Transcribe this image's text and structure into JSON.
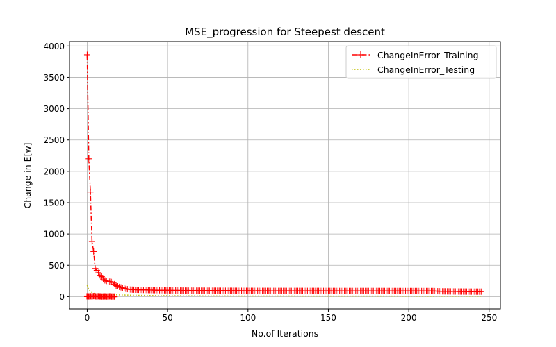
{
  "chart_data": {
    "type": "line",
    "title": "MSE_progression for Steepest descent",
    "xlabel": "No.of Iterations",
    "ylabel": "Change in E[w]",
    "xlim": [
      -11,
      257
    ],
    "ylim": [
      -195,
      4070
    ],
    "x_ticks": [
      0,
      50,
      100,
      150,
      200,
      250
    ],
    "y_ticks": [
      0,
      500,
      1000,
      1500,
      2000,
      2500,
      3000,
      3500,
      4000
    ],
    "grid": true,
    "legend_position": "top-right",
    "series": [
      {
        "name": "ChangeInError_Training",
        "color": "#ff0000",
        "linestyle": "dashdot",
        "marker": "+",
        "points": [
          [
            0,
            3860
          ],
          [
            1,
            2200
          ],
          [
            2,
            1670
          ],
          [
            3,
            880
          ],
          [
            4,
            720
          ],
          [
            5,
            450
          ],
          [
            6,
            420
          ],
          [
            7,
            380
          ],
          [
            8,
            340
          ],
          [
            9,
            320
          ],
          [
            10,
            280
          ],
          [
            11,
            260
          ],
          [
            12,
            250
          ],
          [
            13,
            245
          ],
          [
            14,
            240
          ],
          [
            15,
            235
          ],
          [
            16,
            225
          ],
          [
            17,
            200
          ],
          [
            18,
            175
          ],
          [
            19,
            165
          ],
          [
            20,
            155
          ],
          [
            22,
            140
          ],
          [
            24,
            125
          ],
          [
            26,
            115
          ],
          [
            28,
            112
          ],
          [
            30,
            110
          ],
          [
            33,
            108
          ],
          [
            36,
            106
          ],
          [
            40,
            104
          ],
          [
            45,
            102
          ],
          [
            50,
            100
          ],
          [
            55,
            99
          ],
          [
            60,
            97
          ],
          [
            70,
            96
          ],
          [
            80,
            95
          ],
          [
            90,
            94
          ],
          [
            100,
            93
          ],
          [
            120,
            92
          ],
          [
            140,
            92
          ],
          [
            160,
            91
          ],
          [
            180,
            91
          ],
          [
            200,
            90
          ],
          [
            215,
            90
          ],
          [
            220,
            85
          ],
          [
            230,
            82
          ],
          [
            240,
            80
          ],
          [
            245,
            80
          ]
        ],
        "overlay_points": [
          [
            0,
            5
          ],
          [
            1,
            4
          ],
          [
            2,
            6
          ],
          [
            3,
            4
          ],
          [
            4,
            8
          ],
          [
            5,
            5
          ],
          [
            6,
            3
          ],
          [
            7,
            6
          ],
          [
            8,
            4
          ],
          [
            9,
            2
          ],
          [
            10,
            3
          ],
          [
            11,
            4
          ],
          [
            12,
            2
          ],
          [
            13,
            3
          ],
          [
            14,
            5
          ],
          [
            15,
            2
          ],
          [
            16,
            3
          ],
          [
            17,
            2
          ]
        ]
      },
      {
        "name": "ChangeInError_Testing",
        "color": "#bfbf00",
        "linestyle": "dotted",
        "marker": "none",
        "points": [
          [
            0,
            180
          ],
          [
            1,
            110
          ],
          [
            2,
            80
          ],
          [
            3,
            65
          ],
          [
            4,
            55
          ],
          [
            5,
            50
          ],
          [
            6,
            46
          ],
          [
            8,
            42
          ],
          [
            10,
            38
          ],
          [
            15,
            32
          ],
          [
            20,
            28
          ],
          [
            30,
            22
          ],
          [
            40,
            18
          ],
          [
            50,
            15
          ],
          [
            60,
            13
          ],
          [
            80,
            11
          ],
          [
            100,
            10
          ],
          [
            150,
            9
          ],
          [
            200,
            8
          ],
          [
            245,
            8
          ]
        ]
      }
    ]
  }
}
